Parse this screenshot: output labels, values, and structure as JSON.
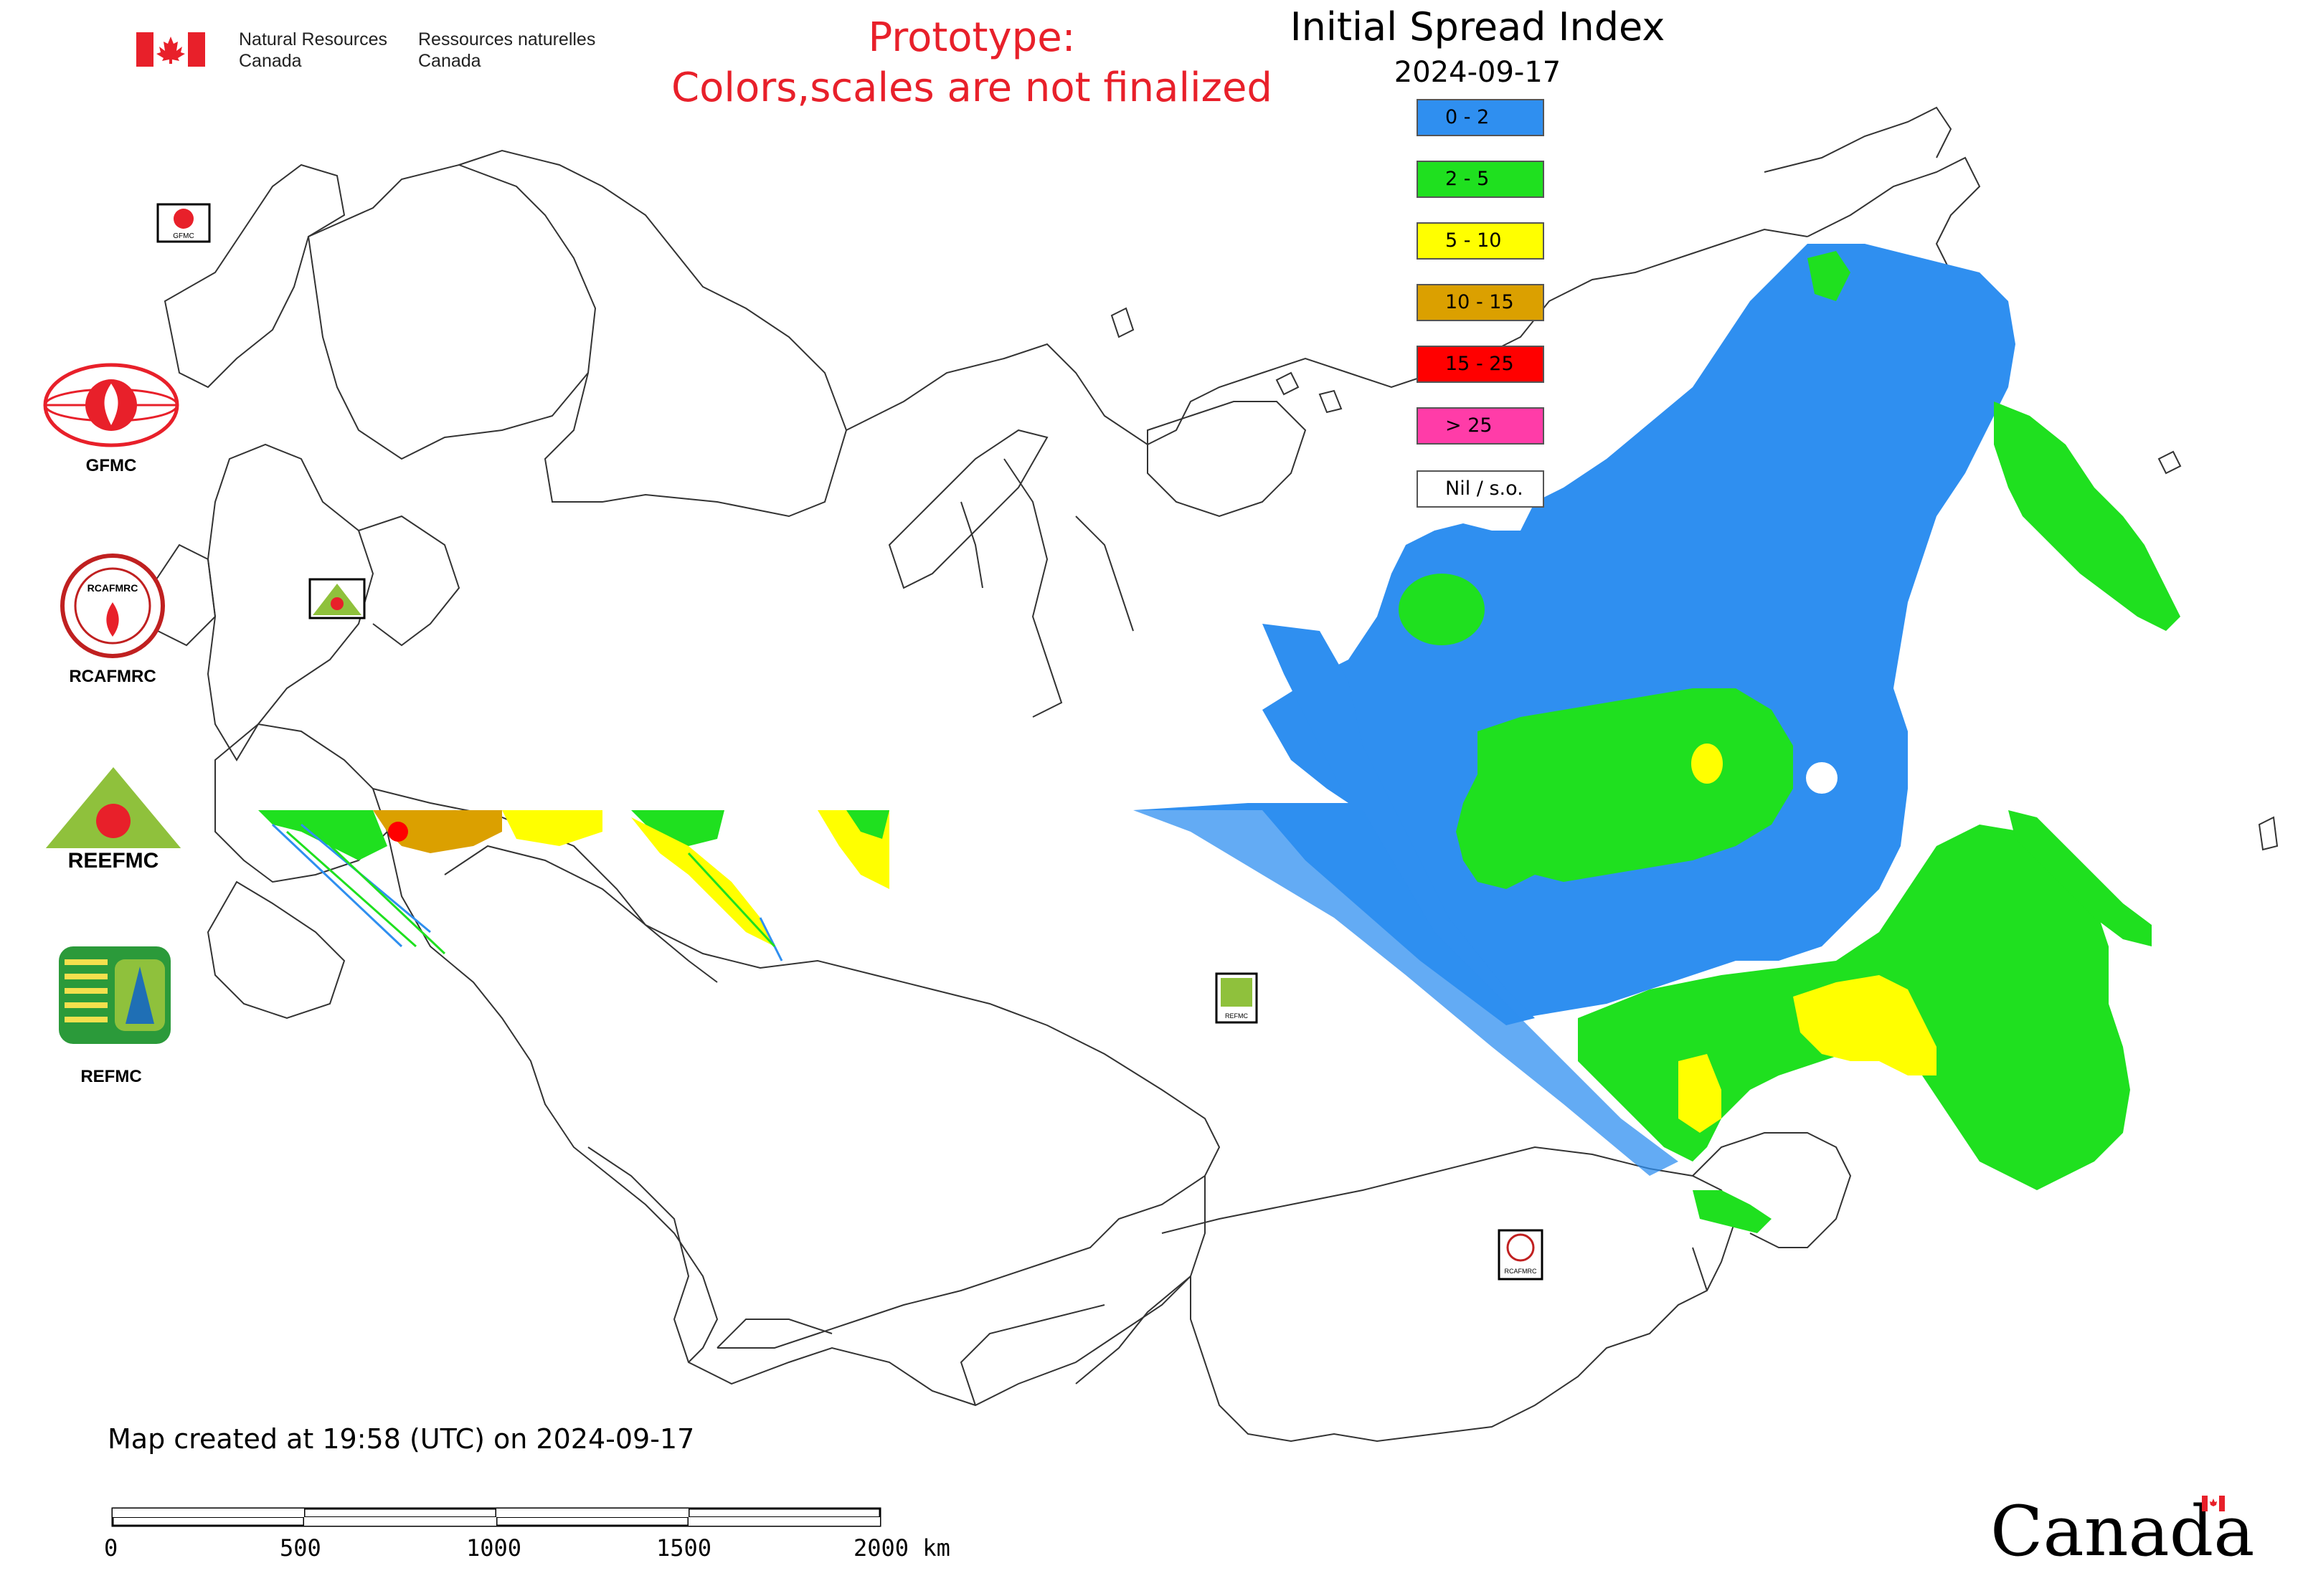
{
  "header": {
    "gov_en_line1": "Natural Resources",
    "gov_en_line2": "Canada",
    "gov_fr_line1": "Ressources naturelles",
    "gov_fr_line2": "Canada",
    "prototype_line1": "Prototype:",
    "prototype_line2": "Colors,scales are not finalized"
  },
  "map": {
    "title": "Initial Spread Index",
    "date": "2024-09-17",
    "created_note": "Map created at 19:58 (UTC) on 2024-09-17"
  },
  "legend": [
    {
      "label": "0 - 2",
      "color": "#2f8ff0"
    },
    {
      "label": "2 - 5",
      "color": "#1fe01f"
    },
    {
      "label": "5 - 10",
      "color": "#ffff00"
    },
    {
      "label": "10 - 15",
      "color": "#dba000"
    },
    {
      "label": "15 - 25",
      "color": "#ff0000"
    },
    {
      "label": "> 25",
      "color": "#ff3ca8"
    },
    {
      "label": "Nil / s.o.",
      "color": "#ffffff"
    }
  ],
  "agencies": {
    "gfmc": "GFMC",
    "rcafmrc": "RCAFMRC",
    "reefmc": "REEFMC",
    "refmc": "REFMC",
    "rcafmrc_logo_text": "RCAFMRC",
    "reefmc_logo_text": "REEFMC"
  },
  "scale_bar": {
    "ticks": [
      "0",
      "500",
      "1000",
      "1500",
      "2000 km"
    ]
  },
  "wordmark": "Canada",
  "icons": {
    "flag": "canada-flag-icon",
    "gfmc": "gfmc-logo-icon",
    "rcafmrc": "rcafmrc-logo-icon",
    "reefmc": "reefmc-logo-icon",
    "refmc": "refmc-logo-icon"
  }
}
